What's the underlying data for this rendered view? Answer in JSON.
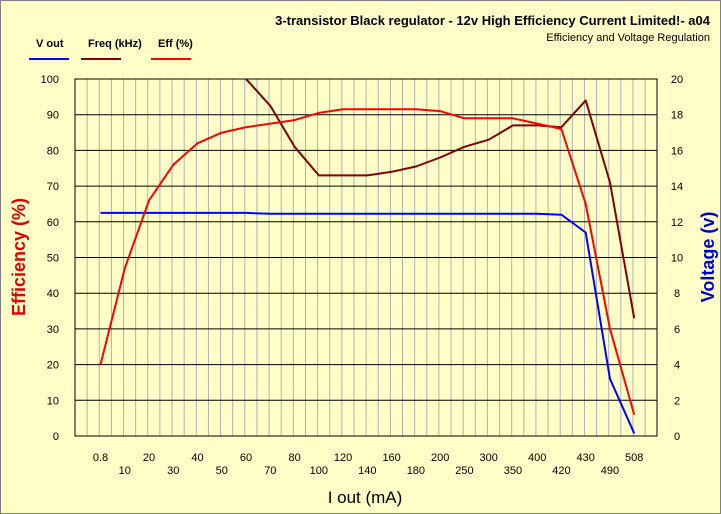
{
  "chart_data": {
    "type": "line",
    "title": "3-transistor Black regulator  - 12v  High Efficiency Current Limited!- a04",
    "subtitle": "Efficiency and Voltage Regulation",
    "xlabel": "I out (mA)",
    "ylabel_left": "Efficiency (%)",
    "ylabel_right": "Voltage (v)",
    "ylim_left": [
      0,
      100
    ],
    "ylim_right": [
      0,
      20
    ],
    "yticks_left": [
      "0",
      "10",
      "20",
      "30",
      "40",
      "50",
      "60",
      "70",
      "80",
      "90",
      "100"
    ],
    "yticks_right": [
      "0",
      "2",
      "4",
      "6",
      "8",
      "10",
      "12",
      "14",
      "16",
      "18",
      "20"
    ],
    "categories": [
      "0.8",
      "10",
      "20",
      "30",
      "40",
      "50",
      "60",
      "70",
      "80",
      "100",
      "120",
      "140",
      "160",
      "180",
      "200",
      "250",
      "300",
      "350",
      "400",
      "420",
      "430",
      "490",
      "508"
    ],
    "series": [
      {
        "name": "V out",
        "axis": "right",
        "color": "#0000ff",
        "values": [
          12.5,
          12.5,
          12.5,
          12.5,
          12.5,
          12.5,
          12.5,
          12.45,
          12.45,
          12.45,
          12.45,
          12.45,
          12.45,
          12.45,
          12.45,
          12.45,
          12.45,
          12.45,
          12.45,
          12.4,
          11.4,
          3.2,
          0.15
        ]
      },
      {
        "name": "Freq  (kHz)",
        "axis": "right",
        "color": "#800000",
        "values": [
          null,
          null,
          null,
          null,
          null,
          null,
          20,
          18.5,
          16.2,
          14.6,
          14.6,
          14.6,
          14.8,
          15.1,
          15.6,
          16.2,
          16.6,
          17.4,
          17.4,
          17.3,
          18.8,
          14.2,
          6.6
        ]
      },
      {
        "name": "Eff  (%)",
        "axis": "left",
        "color": "#ff0000",
        "values": [
          20,
          47,
          66,
          76,
          82,
          85,
          86.5,
          87.5,
          88.5,
          90.5,
          91.5,
          91.5,
          91.5,
          91.5,
          91,
          89,
          89,
          89,
          87.5,
          86,
          65,
          30,
          6
        ]
      }
    ]
  }
}
